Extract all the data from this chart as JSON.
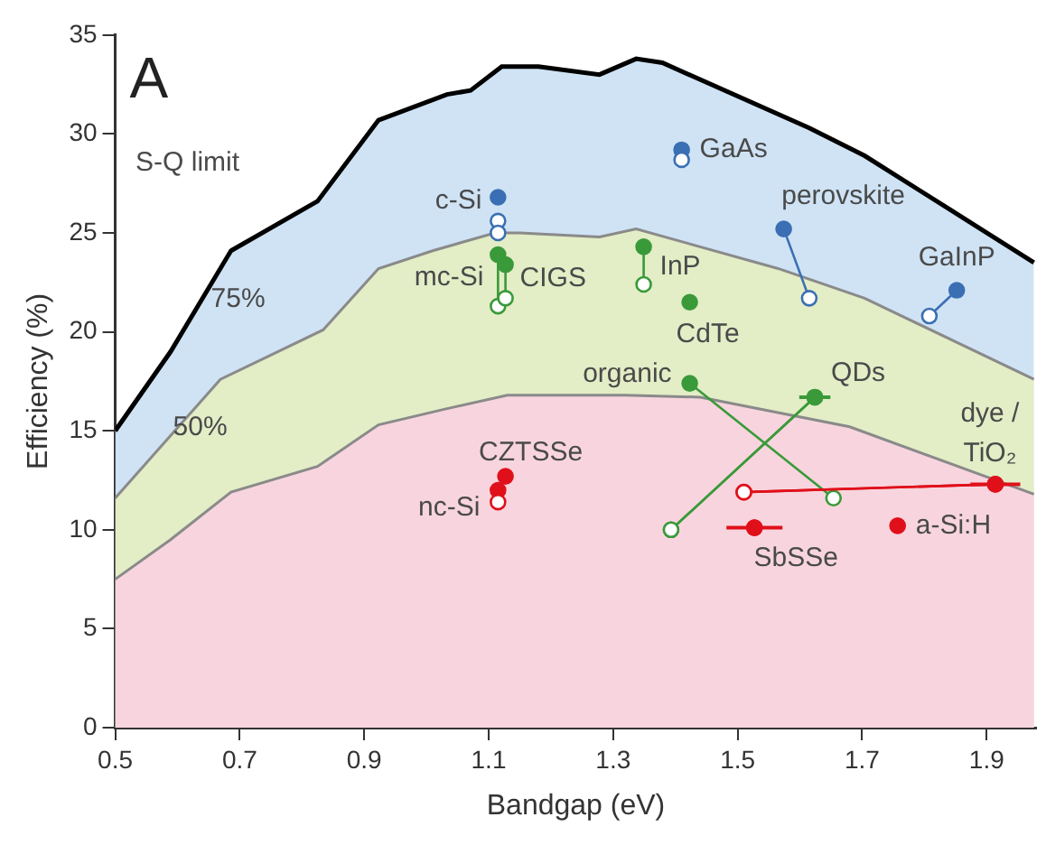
{
  "chart_data": {
    "type": "line",
    "xlabel": "Bandgap (eV)",
    "ylabel": "Efficiency (%)",
    "xlim": [
      0.5,
      1.98
    ],
    "ylim": [
      0,
      35
    ],
    "xticks": [
      {
        "value": 0.5,
        "label": "0.5"
      },
      {
        "value": 0.7,
        "label": "0.7"
      },
      {
        "value": 0.9,
        "label": "0.9"
      },
      {
        "value": 1.1,
        "label": "1.1"
      },
      {
        "value": 1.3,
        "label": "1.3"
      },
      {
        "value": 1.5,
        "label": "1.5"
      },
      {
        "value": 1.7,
        "label": "1.7"
      },
      {
        "value": 1.9,
        "label": "1.9"
      }
    ],
    "yticks": [
      0,
      5,
      10,
      15,
      20,
      25,
      30,
      35
    ],
    "grid": false,
    "legend": false,
    "series": [
      {
        "name": "S-Q limit",
        "type": "area",
        "color": "#cfe3f5",
        "x": [
          0.5,
          0.589,
          0.686,
          0.825,
          0.923,
          1.033,
          1.071,
          1.121,
          1.18,
          1.278,
          1.337,
          1.379,
          1.615,
          1.704,
          1.84,
          1.976
        ],
        "values": [
          15.0,
          19.0,
          24.1,
          26.6,
          30.7,
          32.0,
          32.2,
          33.4,
          33.4,
          33.0,
          33.8,
          33.6,
          30.3,
          28.9,
          26.2,
          23.5
        ]
      },
      {
        "name": "75%",
        "type": "area",
        "color": "#e3edc6",
        "x": [
          0.5,
          0.669,
          0.834,
          0.923,
          1.01,
          1.11,
          1.15,
          1.278,
          1.337,
          1.565,
          1.704,
          1.976
        ],
        "values": [
          11.6,
          17.6,
          20.1,
          23.2,
          24.1,
          25.0,
          25.0,
          24.8,
          25.2,
          23.2,
          21.7,
          17.6
        ]
      },
      {
        "name": "50%",
        "type": "area",
        "color": "#f8d5de",
        "x": [
          0.5,
          0.589,
          0.686,
          0.825,
          0.923,
          1.03,
          1.13,
          1.32,
          1.44,
          1.68,
          1.976
        ],
        "values": [
          7.5,
          9.5,
          11.9,
          13.2,
          15.3,
          16.1,
          16.8,
          16.8,
          16.7,
          15.2,
          11.8
        ]
      },
      {
        "name": "c-Si",
        "type": "scatter",
        "marker": "circle",
        "color": "#3b6fb3",
        "x": [
          1.115,
          1.115,
          1.115
        ],
        "values": [
          26.8,
          25.6,
          25.0
        ]
      },
      {
        "name": "GaAs",
        "type": "scatter",
        "marker": "circle",
        "color": "#3b6fb3",
        "x": [
          1.41,
          1.41
        ],
        "values": [
          29.2,
          28.7
        ]
      },
      {
        "name": "perovskite",
        "type": "line",
        "marker": "circle",
        "color": "#3b6fb3",
        "x": [
          1.574,
          1.615
        ],
        "values": [
          25.2,
          21.7
        ]
      },
      {
        "name": "GaInP",
        "type": "line",
        "marker": "circle",
        "color": "#3b6fb3",
        "x": [
          1.852,
          1.808
        ],
        "values": [
          22.1,
          20.8
        ]
      },
      {
        "name": "mc-Si",
        "type": "line",
        "marker": "circle",
        "color": "#3a9a3a",
        "x": [
          1.115,
          1.115
        ],
        "values": [
          23.9,
          21.3
        ]
      },
      {
        "name": "CIGS",
        "type": "line",
        "marker": "circle",
        "color": "#3a9a3a",
        "x": [
          1.127,
          1.127
        ],
        "values": [
          23.4,
          21.7
        ]
      },
      {
        "name": "InP",
        "type": "line",
        "marker": "circle",
        "color": "#3a9a3a",
        "x": [
          1.349,
          1.349
        ],
        "values": [
          24.3,
          22.4
        ]
      },
      {
        "name": "CdTe",
        "type": "scatter",
        "marker": "circle",
        "color": "#3a9a3a",
        "x": [
          1.423
        ],
        "values": [
          21.5
        ]
      },
      {
        "name": "organic",
        "type": "line",
        "marker": "circle",
        "color": "#3a9a3a",
        "x": [
          1.423,
          1.654
        ],
        "values": [
          17.4,
          11.6
        ]
      },
      {
        "name": "QDs",
        "type": "line",
        "marker": "circle",
        "color": "#3a9a3a",
        "x": [
          1.624,
          1.393
        ],
        "values": [
          16.7,
          10.0
        ],
        "xerrors": [
          0.025,
          null
        ]
      },
      {
        "name": "dye /\nTiO₂",
        "type": "line",
        "marker": "circle",
        "color": "#e0101a",
        "x": [
          1.914,
          1.51
        ],
        "values": [
          12.3,
          11.9
        ],
        "xerrors": [
          0.04,
          null
        ]
      },
      {
        "name": "SbSSe",
        "type": "scatter",
        "marker": "circle",
        "color": "#e0101a",
        "x": [
          1.527
        ],
        "values": [
          10.1
        ],
        "xerrors": [
          0.045
        ]
      },
      {
        "name": "a-Si:H",
        "type": "scatter",
        "marker": "circle",
        "color": "#e0101a",
        "x": [
          1.757
        ],
        "values": [
          10.2
        ]
      },
      {
        "name": "CZTSSe",
        "type": "scatter",
        "marker": "circle",
        "color": "#e0101a",
        "x": [
          1.127
        ],
        "values": [
          12.7
        ]
      },
      {
        "name": "nc-Si",
        "type": "scatter",
        "marker": "circle",
        "color": "#e0101a",
        "x": [
          1.115,
          1.115
        ],
        "values": [
          12.0,
          11.4
        ]
      }
    ],
    "annotations": [
      "A"
    ]
  }
}
